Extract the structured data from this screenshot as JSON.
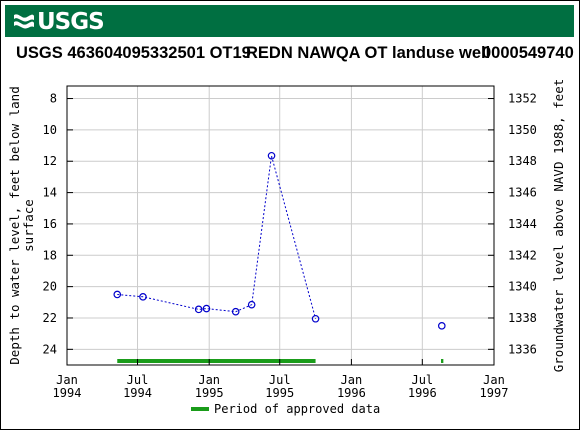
{
  "header": {
    "agency": "USGS",
    "site_id": "USGS 463604095332501 OT19",
    "site_name": "REDN NAWQA OT landuse well",
    "param_code": "0000549740",
    "brand_color": "#006f41"
  },
  "chart_data": {
    "type": "scatter",
    "title": "USGS 463604095332501 OT19      REDN NAWQA OT landuse well     0000549740",
    "ylabel": "Depth to water level, feet below land surface",
    "ylabel_lines": [
      "Depth to water level, feet below land",
      "surface"
    ],
    "y2label": "Groundwater level above NAVD 1988, feet",
    "ylim": [
      25,
      7.2
    ],
    "y_ticks": [
      8,
      10,
      12,
      14,
      16,
      18,
      20,
      22,
      24
    ],
    "y2_ticks": [
      1352,
      1350,
      1348,
      1346,
      1344,
      1342,
      1340,
      1338,
      1336
    ],
    "y2_offset": 1360,
    "xlim": [
      "1994-01-01",
      "1997-01-01"
    ],
    "x_ticks": [
      {
        "date": "1994-01-01",
        "line1": "Jan",
        "line2": "1994"
      },
      {
        "date": "1994-07-01",
        "line1": "Jul",
        "line2": "1994"
      },
      {
        "date": "1995-01-01",
        "line1": "Jan",
        "line2": "1995"
      },
      {
        "date": "1995-07-01",
        "line1": "Jul",
        "line2": "1995"
      },
      {
        "date": "1996-01-01",
        "line1": "Jan",
        "line2": "1996"
      },
      {
        "date": "1996-07-01",
        "line1": "Jul",
        "line2": "1996"
      },
      {
        "date": "1997-01-01",
        "line1": "Jan",
        "line2": "1997"
      }
    ],
    "grid": true,
    "series": [
      {
        "color": "#0000cc",
        "connected_points": [
          {
            "x": "1994-05-10",
            "y": 20.5
          },
          {
            "x": "1994-07-15",
            "y": 20.65
          },
          {
            "x": "1994-12-05",
            "y": 21.45
          },
          {
            "x": "1994-12-25",
            "y": 21.4
          },
          {
            "x": "1995-03-10",
            "y": 21.6
          },
          {
            "x": "1995-04-20",
            "y": 21.15
          },
          {
            "x": "1995-06-10",
            "y": 11.65
          },
          {
            "x": "1995-10-01",
            "y": 22.05
          }
        ],
        "isolated_points": [
          {
            "x": "1996-08-20",
            "y": 22.5
          }
        ]
      }
    ],
    "approved_periods": [
      {
        "start": "1994-05-10",
        "end": "1995-10-01"
      },
      {
        "start": "1996-08-18",
        "end": "1996-08-24"
      }
    ],
    "approved_color": "#1a9c1a",
    "legend": {
      "label": "Period of approved data",
      "placement": "bottom-center"
    }
  }
}
